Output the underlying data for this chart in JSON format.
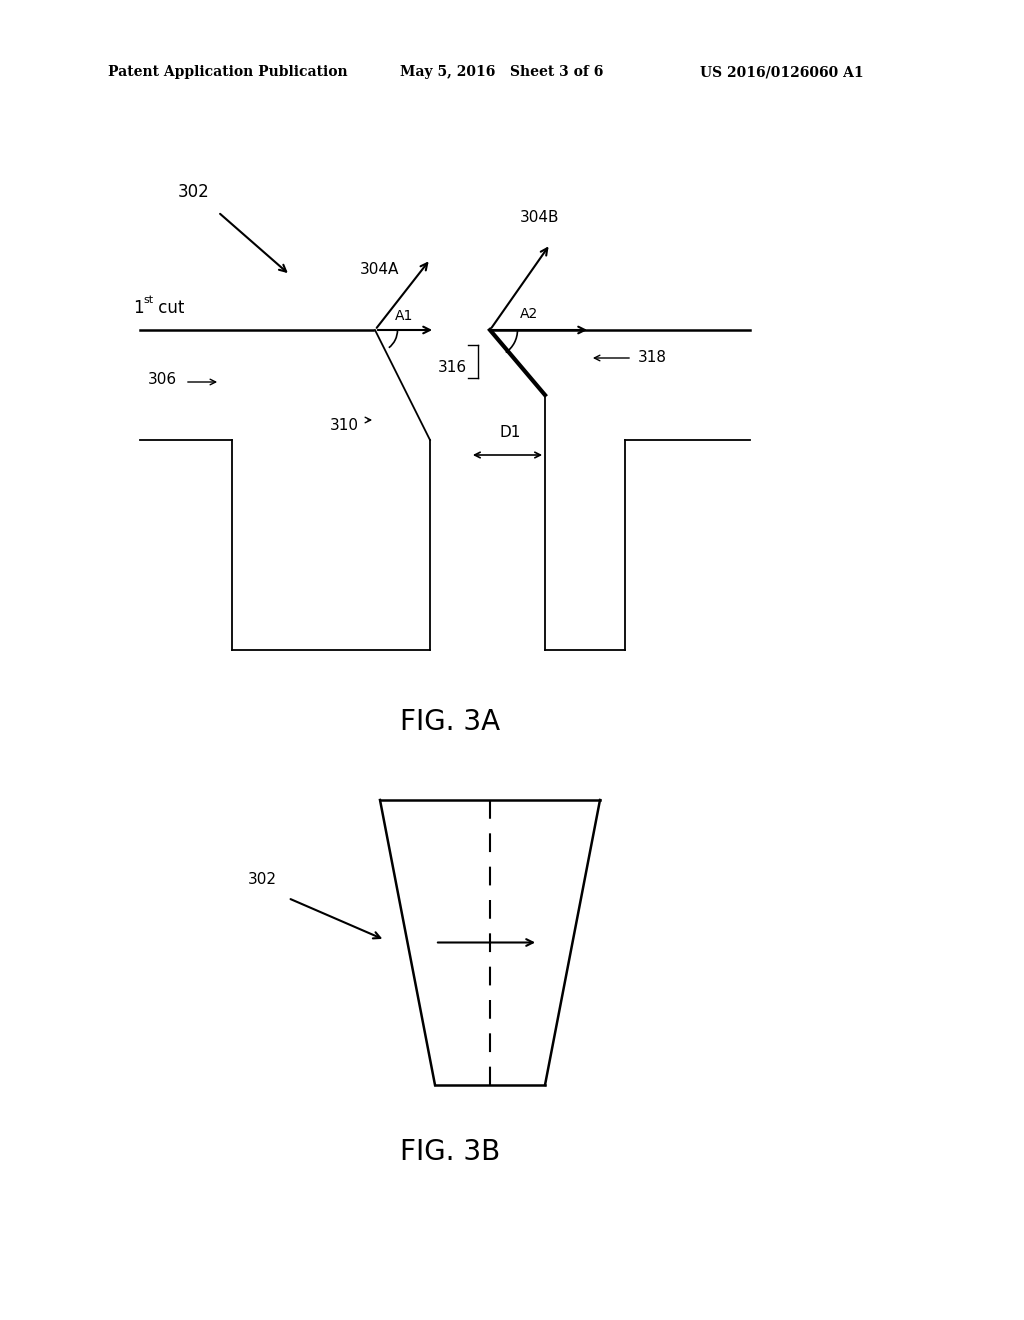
{
  "background_color": "#ffffff",
  "header_left": "Patent Application Publication",
  "header_mid": "May 5, 2016   Sheet 3 of 6",
  "header_right": "US 2016/0126060 A1",
  "fig3a_label": "FIG. 3A",
  "fig3b_label": "FIG. 3B",
  "label_302_top": "302",
  "label_304A": "304A",
  "label_304B": "304B",
  "label_A1": "A1",
  "label_A2": "A2",
  "label_306": "306",
  "label_310": "310",
  "label_316": "316",
  "label_318": "318",
  "label_D1": "D1",
  "label_302_bot": "302",
  "line_color": "#000000",
  "text_color": "#000000",
  "lw_main": 1.8,
  "lw_thin": 1.3,
  "lw_thick": 3.0
}
